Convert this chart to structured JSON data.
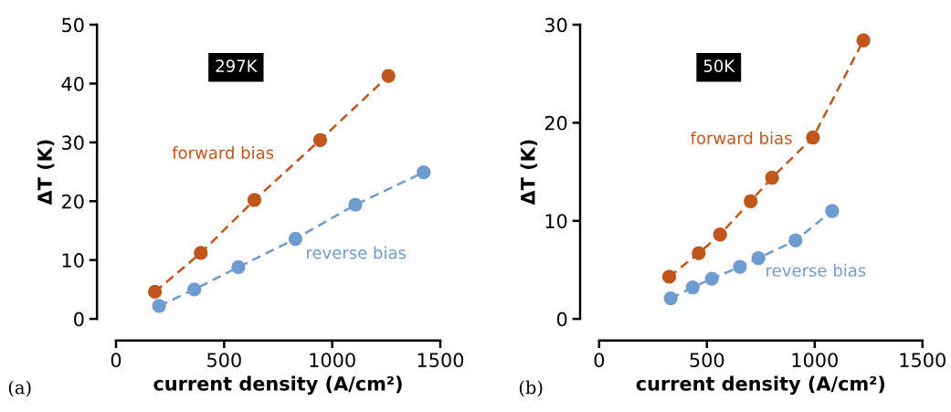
{
  "chart_data": [
    {
      "type": "line",
      "xlabel": "current density (A/cm²)",
      "ylabel": "ΔT (K)",
      "xlim": [
        0,
        1500
      ],
      "xticks": [
        0,
        500,
        1000,
        1500
      ],
      "ylim": [
        0,
        50
      ],
      "yticks": [
        0,
        10,
        20,
        30,
        40,
        50
      ],
      "marker": "circle",
      "line_style": "dashed",
      "grid": false,
      "legend": false,
      "series": [
        {
          "name": "forward bias",
          "color": "#c0561c",
          "x": [
            180,
            392,
            640,
            944,
            1260
          ],
          "values": [
            4.6,
            11.2,
            20.2,
            30.4,
            41.3
          ]
        },
        {
          "name": "reverse bias",
          "color": "#6e9bd0",
          "x": [
            199,
            362,
            566,
            830,
            1107,
            1423
          ],
          "values": [
            2.2,
            5.0,
            8.8,
            13.6,
            19.4,
            24.9
          ]
        }
      ],
      "annotations": [
        "297K",
        "(a)"
      ]
    },
    {
      "type": "line",
      "xlabel": "current density (A/cm²)",
      "ylabel": "ΔT (K)",
      "xlim": [
        0,
        1500
      ],
      "xticks": [
        0,
        500,
        1000,
        1500
      ],
      "ylim": [
        0,
        30
      ],
      "yticks": [
        0,
        10,
        20,
        30
      ],
      "marker": "circle",
      "line_style": "dashed",
      "grid": false,
      "legend": false,
      "series": [
        {
          "name": "forward bias",
          "color": "#c0561c",
          "x": [
            325,
            462,
            561,
            703,
            802,
            992,
            1226
          ],
          "values": [
            4.3,
            6.7,
            8.6,
            12.0,
            14.4,
            18.5,
            28.4
          ]
        },
        {
          "name": "reverse bias",
          "color": "#6e9bd0",
          "x": [
            332,
            434,
            523,
            653,
            739,
            911,
            1081
          ],
          "values": [
            2.1,
            3.2,
            4.1,
            5.3,
            6.2,
            8.0,
            11.0
          ]
        }
      ],
      "annotations": [
        "50K",
        "(b)"
      ]
    }
  ]
}
